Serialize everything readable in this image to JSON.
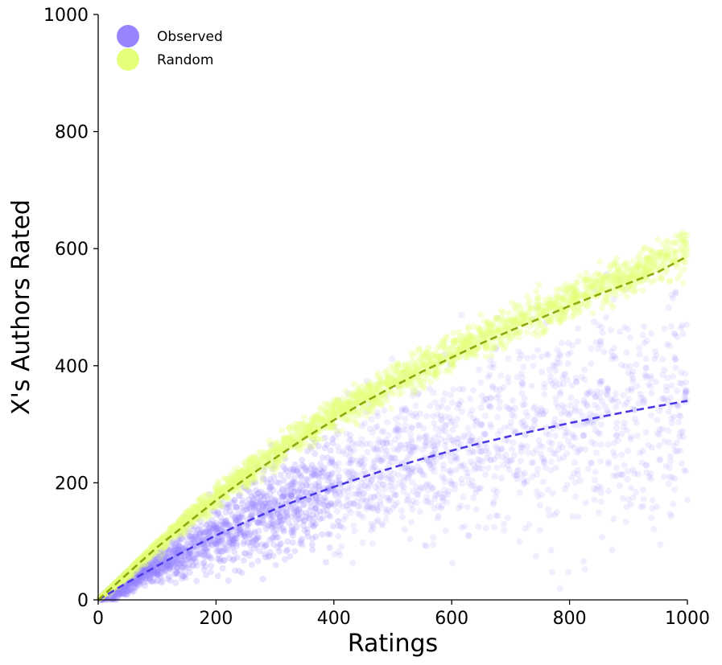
{
  "chart_data": {
    "type": "scatter",
    "xlabel": "Ratings",
    "ylabel": "X's Authors Rated",
    "xlim": [
      0,
      1000
    ],
    "ylim": [
      0,
      1000
    ],
    "x_ticks": [
      "0",
      "200",
      "400",
      "600",
      "800",
      "1000"
    ],
    "y_ticks": [
      "0",
      "200",
      "400",
      "600",
      "800",
      "1000"
    ],
    "grid": false,
    "legend_placement": "top-left",
    "series": [
      {
        "name": "Observed",
        "color": "#9785ff",
        "trend_color": "#4a38e6",
        "trend_x": [
          0,
          50,
          100,
          150,
          200,
          250,
          300,
          350,
          400,
          450,
          500,
          550,
          600,
          650,
          700,
          750,
          800,
          850,
          900,
          950,
          1000
        ],
        "trend_y": [
          0,
          30,
          58,
          85,
          110,
          133,
          155,
          175,
          193,
          210,
          226,
          241,
          255,
          268,
          280,
          291,
          302,
          312,
          322,
          331,
          340
        ],
        "cloud_center_x": [
          20,
          50,
          100,
          150,
          200,
          250,
          300,
          350,
          400,
          450,
          500,
          550,
          600,
          650,
          700,
          750,
          800,
          850,
          900,
          950,
          1000
        ],
        "cloud_center_y": [
          12,
          30,
          58,
          85,
          110,
          133,
          155,
          175,
          193,
          210,
          226,
          241,
          255,
          268,
          280,
          291,
          302,
          312,
          322,
          331,
          340
        ],
        "cloud_spread_y": [
          6,
          10,
          14,
          20,
          26,
          32,
          38,
          44,
          50,
          56,
          62,
          68,
          72,
          76,
          80,
          84,
          88,
          92,
          96,
          100,
          104
        ]
      },
      {
        "name": "Random",
        "color": "#e4ff7a",
        "trend_color": "#8fa80f",
        "trend_x": [
          0,
          50,
          100,
          150,
          200,
          250,
          300,
          350,
          400,
          450,
          500,
          550,
          600,
          650,
          700,
          750,
          800,
          850,
          900,
          950,
          1000
        ],
        "trend_y": [
          0,
          45,
          90,
          130,
          170,
          207,
          242,
          276,
          307,
          337,
          364,
          390,
          414,
          438,
          460,
          481,
          502,
          522,
          541,
          560,
          587
        ],
        "cloud_center_x": [
          20,
          50,
          100,
          150,
          200,
          250,
          300,
          350,
          400,
          450,
          500,
          550,
          600,
          650,
          700,
          750,
          800,
          850,
          900,
          950,
          1000
        ],
        "cloud_center_y": [
          20,
          48,
          95,
          136,
          177,
          215,
          250,
          284,
          315,
          344,
          372,
          397,
          422,
          446,
          468,
          490,
          512,
          533,
          553,
          576,
          605
        ],
        "cloud_spread_y": [
          4,
          6,
          8,
          9,
          10,
          11,
          12,
          12,
          13,
          13,
          14,
          14,
          14,
          15,
          15,
          15,
          16,
          16,
          16,
          17,
          17
        ]
      }
    ]
  }
}
